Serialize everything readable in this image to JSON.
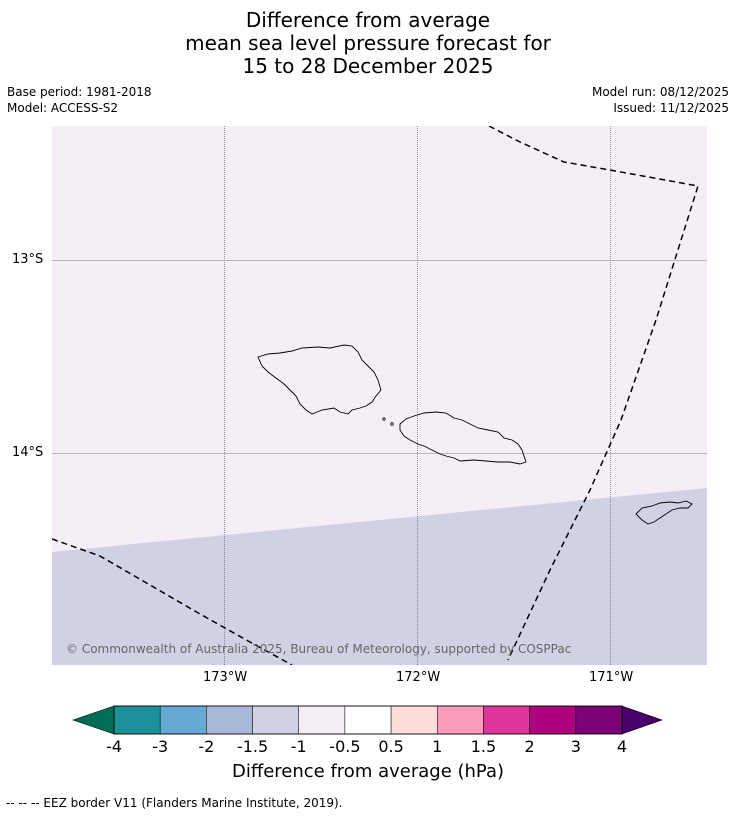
{
  "title": {
    "line1": "Difference from average",
    "line2": "mean sea level pressure forecast for",
    "line3": "15 to 28 December 2025"
  },
  "meta": {
    "base_period": "Base period: 1981-2018",
    "model": "Model: ACCESS-S2",
    "model_run": "Model run: 08/12/2025",
    "issued": "Issued: 11/12/2025"
  },
  "map": {
    "lat_labels": [
      "13°S",
      "14°S"
    ],
    "lon_labels": [
      "173°W",
      "172°W",
      "171°W"
    ],
    "copyright": "© Commonwealth of Australia 2025, Bureau of Meteorology, supported by COSPPac",
    "regions": [
      {
        "name": "north",
        "category": "-1 to -0.5",
        "color": "#f5eef6"
      },
      {
        "name": "south",
        "category": "-1.5 to -1",
        "color": "#d1d1e5"
      }
    ]
  },
  "colorbar": {
    "title": "Difference from average (hPa)",
    "tick_labels": [
      "-4",
      "-3",
      "-2",
      "-1.5",
      "-1",
      "-0.5",
      "0.5",
      "1",
      "1.5",
      "2",
      "3",
      "4"
    ],
    "colors": {
      "under": "#006d56",
      "bins": [
        "#1c9199",
        "#66aad2",
        "#a8b8d8",
        "#d1d1e5",
        "#f5eef6",
        "#ffffff",
        "#fddcdc",
        "#f99dba",
        "#dd3599",
        "#ae017e",
        "#7a0177"
      ],
      "over": "#49006a"
    }
  },
  "footer": "--  --  -- EEZ border V11 (Flanders Marine Institute, 2019)."
}
